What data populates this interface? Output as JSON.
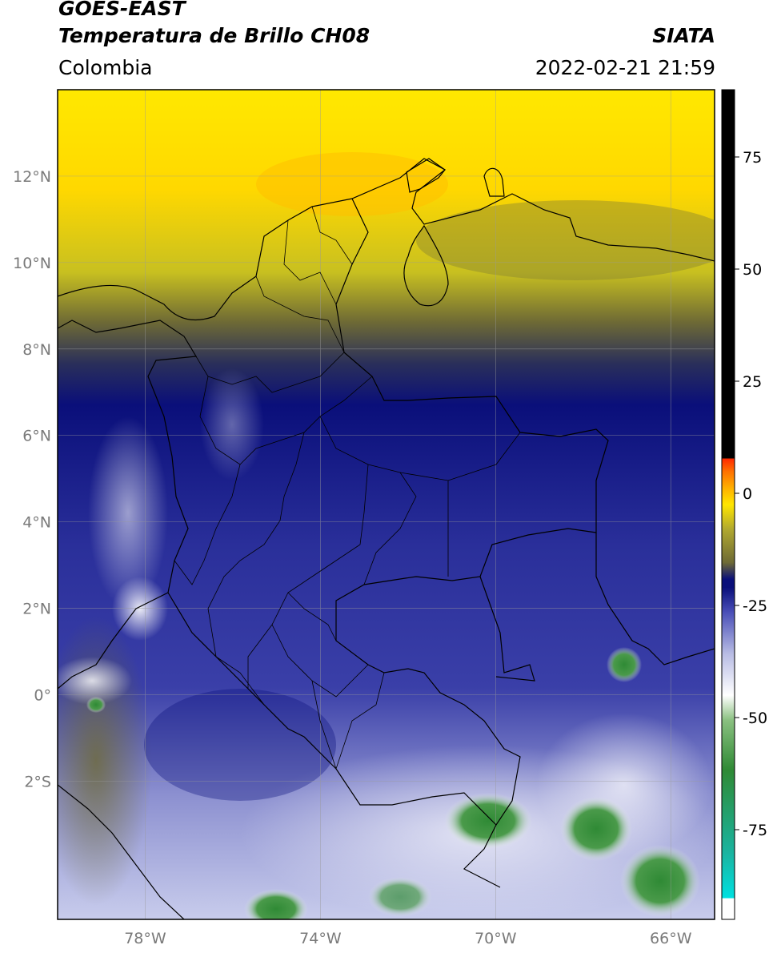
{
  "header": {
    "satellite": "GOES-EAST",
    "product": "Temperatura de Brillo CH08",
    "brand": "SIATA",
    "region": "Colombia",
    "datetime": "2022-02-21 21:59"
  },
  "map": {
    "lat_labels": [
      "12°N",
      "10°N",
      "8°N",
      "6°N",
      "4°N",
      "2°N",
      "0°",
      "2°S"
    ],
    "lon_labels": [
      "78°W",
      "74°W",
      "70°W",
      "66°W"
    ],
    "lat_values": [
      12,
      10,
      8,
      6,
      4,
      2,
      0,
      -2
    ],
    "lon_values": [
      -78,
      -74,
      -70,
      -66
    ],
    "extent": {
      "lon_min": -80,
      "lon_max": -65,
      "lat_min": -5.2,
      "lat_max": 14
    }
  },
  "colorbar": {
    "tick_labels": [
      "75",
      "50",
      "25",
      "0",
      "-25",
      "-50",
      "-75"
    ],
    "tick_values": [
      75,
      50,
      25,
      0,
      -25,
      -50,
      -75
    ],
    "range": [
      -95,
      90
    ],
    "colors": {
      "warm": "#000000",
      "red": "#ff2a00",
      "orange": "#ff9a00",
      "yellow": "#ffe600",
      "olive": "#6e6a35",
      "navy": "#0a0f7a",
      "blue": "#4a4fb8",
      "white": "#ffffff",
      "green": "#2f8a35",
      "cyan": "#00e0e0"
    }
  }
}
